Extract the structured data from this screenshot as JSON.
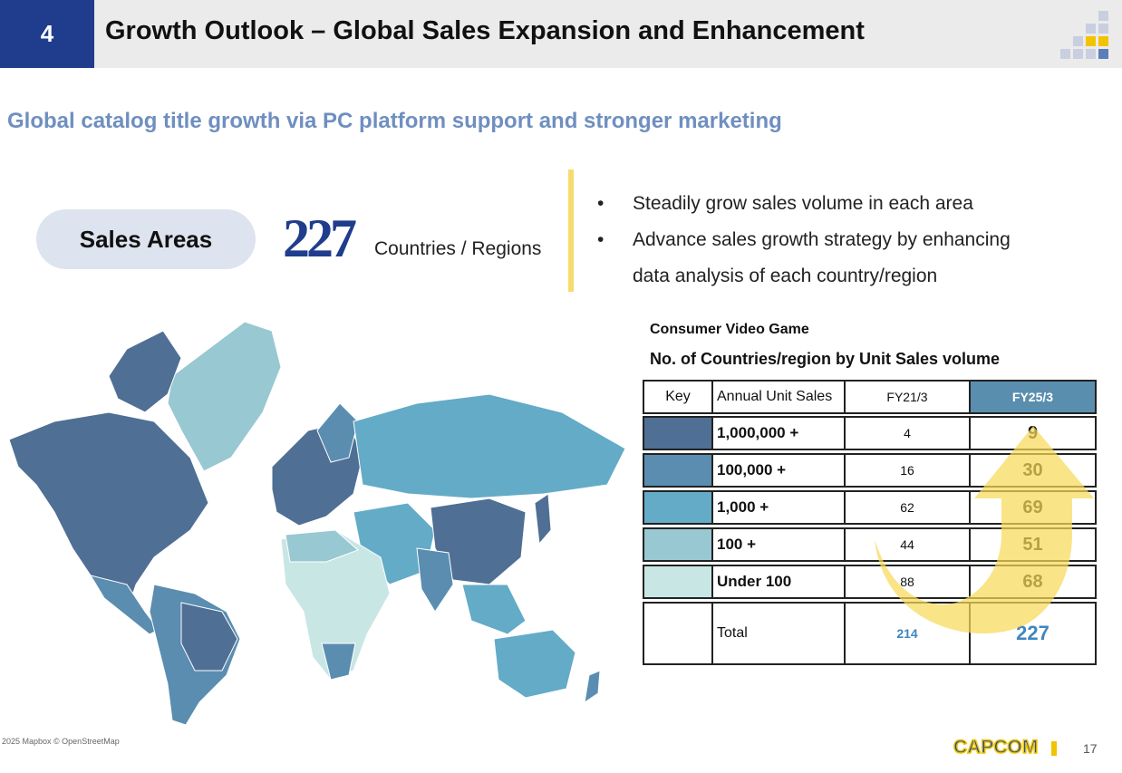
{
  "header": {
    "section_number": "4",
    "title": "Growth Outlook – Global Sales Expansion and Enhancement"
  },
  "subtitle": "Global catalog title growth via PC platform support and stronger marketing",
  "sales_areas": {
    "label": "Sales Areas",
    "count": "227",
    "unit": "Countries / Regions"
  },
  "bullets": [
    "Steadily grow sales volume in each area",
    "Advance sales growth strategy by enhancing",
    "data analysis of each country/region"
  ],
  "bullet_marker": "•",
  "map": {
    "credit": "2025 Mapbox © OpenStreetMap"
  },
  "table": {
    "caption1": "Consumer Video Game",
    "caption2": "No. of Countries/region by Unit Sales volume",
    "headers": {
      "key": "Key",
      "annual": "Annual Unit Sales",
      "fy21": "FY21/3",
      "fy25": "FY25/3"
    },
    "rows": [
      {
        "label": "1,000,000 +",
        "fy21": "4",
        "fy25": "9",
        "color": "#4f6f94"
      },
      {
        "label": "100,000 +",
        "fy21": "16",
        "fy25": "30",
        "color": "#5a8db0"
      },
      {
        "label": "1,000 +",
        "fy21": "62",
        "fy25": "69",
        "color": "#63abc7"
      },
      {
        "label": "100 +",
        "fy21": "44",
        "fy25": "51",
        "color": "#98c8d2"
      },
      {
        "label": "Under 100",
        "fy21": "88",
        "fy25": "68",
        "color": "#c8e6e4"
      }
    ],
    "total": {
      "label": "Total",
      "fy21": "214",
      "fy25": "227"
    }
  },
  "colors": {
    "brand_blue": "#1f3d8c",
    "header_fy25": "#5a8eae",
    "arrow_yellow": "#f7d95a",
    "total_blue": "#3f86bf"
  },
  "footer": {
    "brand": "CAPCOM",
    "page": "17"
  }
}
